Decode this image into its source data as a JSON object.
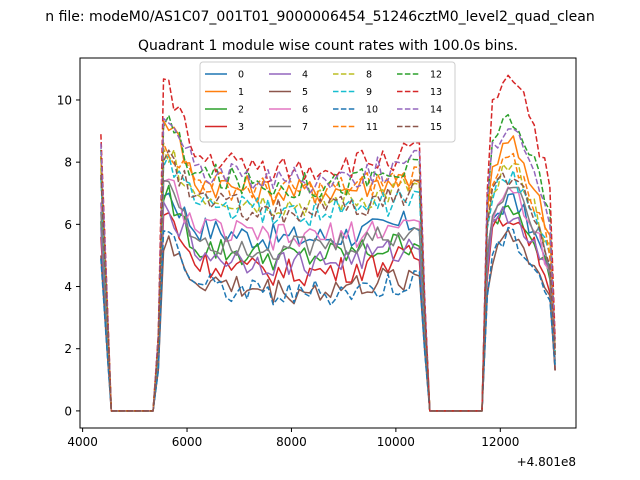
{
  "suptitle": "n file: modeM0/AS1C07_001T01_9000006454_51246cztM0_level2_quad_clean",
  "chart_data": {
    "type": "line",
    "title": "Quadrant 1 module wise count rates with 100.0s bins.",
    "xlabel": "",
    "ylabel": "",
    "x_offset_label": "+4.801e8",
    "xlim": [
      3950,
      13450
    ],
    "ylim": [
      -0.55,
      11.35
    ],
    "xticks": [
      4000,
      6000,
      8000,
      10000,
      12000
    ],
    "xtick_labels": [
      "4000",
      "6000",
      "8000",
      "10000",
      "12000"
    ],
    "yticks": [
      0,
      2,
      4,
      6,
      8,
      10
    ],
    "ytick_labels": [
      "0",
      "2",
      "4",
      "6",
      "8",
      "10"
    ],
    "grid": false,
    "legend_position": "upper center, 4 columns",
    "x_segments": [
      {
        "start": 4350,
        "end": 5350,
        "step": 100
      },
      {
        "start": 5350,
        "end": 10650,
        "step": 100
      },
      {
        "start": 10650,
        "end": 11650,
        "step": 100
      },
      {
        "start": 11650,
        "end": 13050,
        "step": 100
      }
    ],
    "series": [
      {
        "name": "0",
        "color": "#1f77b4",
        "dash": "solid",
        "level": 6.1,
        "peak": 7.0,
        "peak2": 6.8,
        "end": 1.3
      },
      {
        "name": "1",
        "color": "#ff7f0e",
        "dash": "solid",
        "level": 7.6,
        "peak": 9.3,
        "peak2": 8.6,
        "end": 2.0
      },
      {
        "name": "2",
        "color": "#2ca02c",
        "dash": "solid",
        "level": 5.5,
        "peak": 6.9,
        "peak2": 6.7,
        "end": 1.5
      },
      {
        "name": "3",
        "color": "#d62728",
        "dash": "solid",
        "level": 5.0,
        "peak": 6.3,
        "peak2": 6.3,
        "end": 1.3
      },
      {
        "name": "4",
        "color": "#9467bd",
        "dash": "solid",
        "level": 5.3,
        "peak": 6.6,
        "peak2": 6.4,
        "end": 1.4
      },
      {
        "name": "5",
        "color": "#8c564b",
        "dash": "solid",
        "level": 4.4,
        "peak": 5.2,
        "peak2": 5.6,
        "end": 1.3
      },
      {
        "name": "6",
        "color": "#e377c2",
        "dash": "solid",
        "level": 6.1,
        "peak": 7.3,
        "peak2": 7.1,
        "end": 1.6
      },
      {
        "name": "7",
        "color": "#7f7f7f",
        "dash": "solid",
        "level": 5.8,
        "peak": 7.5,
        "peak2": 7.2,
        "end": 1.6
      },
      {
        "name": "8",
        "color": "#bcbd22",
        "dash": "dashed",
        "level": 7.2,
        "peak": 8.4,
        "peak2": 7.9,
        "end": 1.9
      },
      {
        "name": "9",
        "color": "#17becf",
        "dash": "dashed",
        "level": 6.9,
        "peak": 8.0,
        "peak2": 7.6,
        "end": 1.8
      },
      {
        "name": "10",
        "color": "#1f77b4",
        "dash": "dashed",
        "level": 4.3,
        "peak": 5.8,
        "peak2": 5.6,
        "end": 1.4
      },
      {
        "name": "11",
        "color": "#ff7f0e",
        "dash": "dashed",
        "level": 7.6,
        "peak": 8.5,
        "peak2": 8.0,
        "end": 2.0
      },
      {
        "name": "12",
        "color": "#2ca02c",
        "dash": "dashed",
        "level": 7.8,
        "peak": 9.2,
        "peak2": 9.5,
        "end": 2.1
      },
      {
        "name": "13",
        "color": "#d62728",
        "dash": "dashed",
        "level": 8.3,
        "peak": 10.6,
        "peak2": 10.9,
        "end": 2.3
      },
      {
        "name": "14",
        "color": "#9467bd",
        "dash": "dashed",
        "level": 8.0,
        "peak": 9.5,
        "peak2": 9.3,
        "end": 2.0
      },
      {
        "name": "15",
        "color": "#8c564b",
        "dash": "dashed",
        "level": 7.0,
        "peak": 8.0,
        "peak2": 7.6,
        "end": 1.8
      }
    ]
  }
}
